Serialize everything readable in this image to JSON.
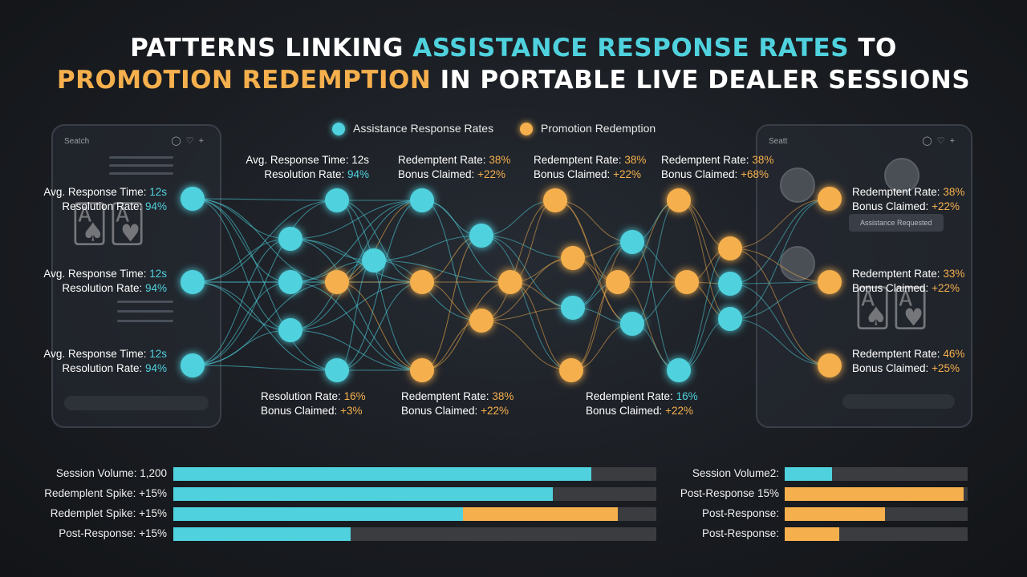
{
  "title": {
    "line1_a": "PATTERNS LINKING ",
    "line1_b": "ASSISTANCE RESPONSE RATES",
    "line1_c": " TO",
    "line2_a": "PROMOTION REDEMPTION",
    "line2_b": " IN PORTABLE LIVE DEALER SESSIONS"
  },
  "colors": {
    "cyan": "#4fd2de",
    "orange": "#f5b04d",
    "track": "#3a3c40"
  },
  "legend": [
    {
      "label": "Assistance Response Rates",
      "color": "#4fd2de"
    },
    {
      "label": "Promotion Redemption",
      "color": "#f5b04d"
    }
  ],
  "background": {
    "left_phone_search": "Seatch",
    "right_phone_search": "Seatt",
    "right_phone_bubble": "Assistance Requested"
  },
  "labels": {
    "left_top": {
      "l1": "Avg. Response Time: ",
      "v1": "12s",
      "l2": "Resolution Rate: ",
      "v2": "94%"
    },
    "left_mid": {
      "l1": "Avg. Response Time: ",
      "v1": "12s",
      "l2": "Resolution Rate: ",
      "v2": "94%"
    },
    "left_bot": {
      "l1": "Avg. Response Time: ",
      "v1": "12s",
      "l2": "Resolution Rate: ",
      "v2": "94%"
    },
    "top_1": {
      "l1": "Avg. Response Time: ",
      "v1": "12s",
      "l2": "Resolution Rate: ",
      "v2": "94%"
    },
    "top_2": {
      "l1": "Redemptent Rate: ",
      "v1": "38%",
      "l2": "Bonus Claimed: ",
      "v2": "+22%"
    },
    "top_3": {
      "l1": "Redemptent Rate: ",
      "v1": "38%",
      "l2": "Bonus Claimed: ",
      "v2": "+22%"
    },
    "top_4": {
      "l1": "Redemptent Rate: ",
      "v1": "38%",
      "l2": "Bonus Claimed: ",
      "v2": "+68%"
    },
    "bot_1": {
      "l1": "Resolution Rate: ",
      "v1": "16%",
      "l2": "Bonus Claimed: ",
      "v2": "+3%"
    },
    "bot_2": {
      "l1": "Redemptent Rate: ",
      "v1": "38%",
      "l2": "Bonus Claimed: ",
      "v2": "+22%"
    },
    "bot_3": {
      "l1": "Redempient Rate: ",
      "v1": "16%",
      "l2": "Bonus Claimed: ",
      "v2": "+22%"
    },
    "right_top": {
      "l1": "Redemptent Rate: ",
      "v1": "38%",
      "l2": "Bonus Claimed: ",
      "v2": "+22%"
    },
    "right_mid": {
      "l1": "Redemptent Rate: ",
      "v1": "33%",
      "l2": "Bonus Claimed: ",
      "v2": "+22%"
    },
    "right_bot": {
      "l1": "Redemptent Rate: ",
      "v1": "46%",
      "l2": "Bonus Claimed: ",
      "v2": "+25%"
    }
  },
  "bars_left": [
    {
      "label": "Session Volume: 1,200",
      "cyan": 0.865,
      "orange": 0
    },
    {
      "label": "Redemplent Spike: +15%",
      "cyan": 0.785,
      "orange": 0
    },
    {
      "label": "Redemplet Spike: +15%",
      "cyan": 0.6,
      "orange": 0.32
    },
    {
      "label": "Post-Response: +15%",
      "cyan": 0.367,
      "orange": 0
    }
  ],
  "bars_right": [
    {
      "label": "Session Volume2:",
      "cyan": 0.26,
      "orange": 0
    },
    {
      "label": "Post-Response 15%",
      "cyan": 0,
      "orange": 0.98
    },
    {
      "label": "Post-Response:",
      "cyan": 0,
      "orange": 0.55
    },
    {
      "label": "Post-Response:",
      "cyan": 0,
      "orange": 0.3
    }
  ]
}
